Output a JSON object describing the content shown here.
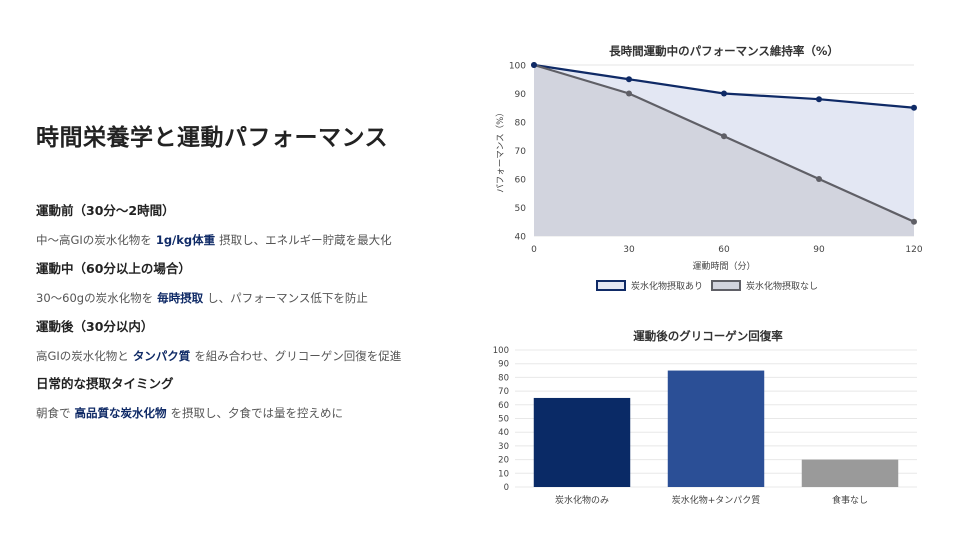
{
  "slide": {
    "title": "時間栄養学と運動パフォーマンス",
    "sections": [
      {
        "heading": "運動前（30分〜2時間）",
        "pre": "中〜高GIの炭水化物を",
        "highlight": "1g/kg体重",
        "post": "摂取し、エネルギー貯蔵を最大化"
      },
      {
        "heading": "運動中（60分以上の場合）",
        "pre": "30〜60gの炭水化物を",
        "highlight": "毎時摂取",
        "post": "し、パフォーマンス低下を防止"
      },
      {
        "heading": "運動後（30分以内）",
        "pre": "高GIの炭水化物と",
        "highlight": "タンパク質",
        "post": "を組み合わせ、グリコーゲン回復を促進"
      },
      {
        "heading": "日常的な摂取タイミング",
        "pre": "朝食で",
        "highlight": "高品質な炭水化物",
        "post": "を摂取し、夕食では量を控えめに"
      }
    ]
  },
  "chart_data": [
    {
      "type": "line",
      "title": "長時間運動中のパフォーマンス維持率（%）",
      "xlabel": "運動時間（分）",
      "ylabel": "パフォーマンス（%）",
      "x": [
        0,
        30,
        60,
        90,
        120
      ],
      "xlim": [
        0,
        120
      ],
      "ylim": [
        40,
        100
      ],
      "yticks": [
        40,
        50,
        60,
        70,
        80,
        90,
        100
      ],
      "grid": true,
      "legend_position": "bottom",
      "series": [
        {
          "name": "炭水化物摂取あり",
          "values": [
            100,
            95,
            90,
            88,
            85
          ],
          "color": "#0f2a66",
          "fill": "#e3e7f3"
        },
        {
          "name": "炭水化物摂取なし",
          "values": [
            100,
            90,
            75,
            60,
            45
          ],
          "color": "#5f5f66",
          "fill": "#d2d4de"
        }
      ]
    },
    {
      "type": "bar",
      "title": "運動後のグリコーゲン回復率",
      "categories": [
        "炭水化物のみ",
        "炭水化物+タンパク質",
        "食事なし"
      ],
      "values": [
        65,
        85,
        20
      ],
      "colors": [
        "#0a2a66",
        "#2b4f96",
        "#9a9a9a"
      ],
      "ylim": [
        0,
        100
      ],
      "yticks": [
        0,
        10,
        20,
        30,
        40,
        50,
        60,
        70,
        80,
        90,
        100
      ],
      "grid": true
    }
  ]
}
